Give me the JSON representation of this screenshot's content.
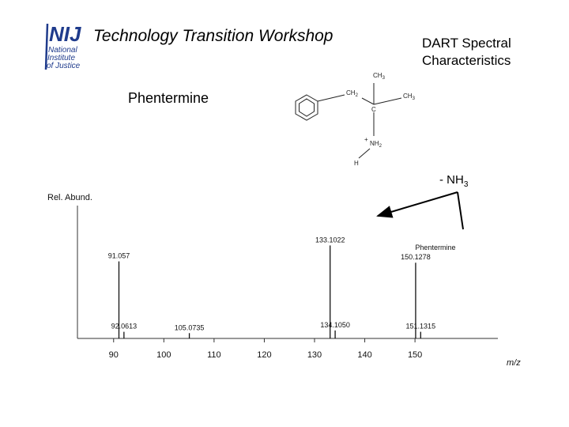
{
  "slide": {
    "title": "Technology Transition Workshop",
    "subtitle_line1": "DART Spectral",
    "subtitle_line2": "Characteristics",
    "compound": "Phentermine",
    "loss_label": "- NH",
    "loss_sub": "3"
  },
  "logo": {
    "main": "NIJ",
    "line1": "National",
    "line2": "Institute",
    "line3": "of Justice",
    "color": "#1f3b8c"
  },
  "molecule": {
    "ch3_top": "CH",
    "ch3_top_sub": "3",
    "ch2": "CH",
    "ch2_sub": "2",
    "ch3_right": "CH",
    "ch3_right_sub": "3",
    "c_center": "C",
    "nh2_plus": "+",
    "nh2": "NH",
    "nh2_sub": "2",
    "h": "H"
  },
  "chart_data": {
    "type": "bar",
    "title": "",
    "xlabel": "m/z",
    "ylabel": "Rel. Abund.",
    "xlim": [
      82.8,
      166.5
    ],
    "ylim": [
      0,
      100
    ],
    "xticks": [
      90,
      100,
      110,
      120,
      130,
      140,
      150
    ],
    "xtick_labels": [
      "90",
      "100",
      "110",
      "120",
      "130",
      "140",
      "150"
    ],
    "peaks": [
      {
        "mz": 91.057,
        "label": "91.057",
        "abundance": 58
      },
      {
        "mz": 92.0613,
        "label": "92.0613",
        "abundance": 5
      },
      {
        "mz": 105.0735,
        "label": "105.0735",
        "abundance": 4
      },
      {
        "mz": 133.1022,
        "label": "133.1022",
        "abundance": 70
      },
      {
        "mz": 134.105,
        "label": "134.1050",
        "abundance": 6
      },
      {
        "mz": 150.1278,
        "label": "150.1278",
        "abundance": 57,
        "name": "Phentermine",
        "name_color": "#b22222"
      },
      {
        "mz": 151.1315,
        "label": "151.1315",
        "abundance": 5
      }
    ],
    "axis_max_label": ""
  },
  "colors": {
    "annotation": "#000000",
    "accent_label": "#b22222"
  }
}
